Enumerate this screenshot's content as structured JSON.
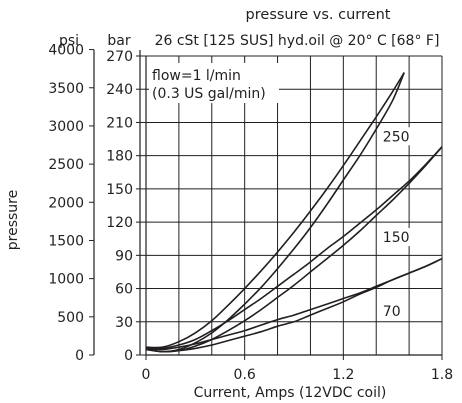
{
  "chart_data": {
    "type": "line",
    "title": "pressure vs. current",
    "subtitle": "26 cSt [125 SUS] hyd.oil @ 20° C [68° F]",
    "xlabel": "Current, Amps (12VDC coil)",
    "ylabel": "pressure",
    "unit_left": "psi",
    "unit_right": "bar",
    "annotation": "flow=1 l/min\n(0.3 US gal/min)",
    "x_ticks": [
      0,
      0.6,
      1.2,
      1.8
    ],
    "x_tick_labels": [
      "0",
      "0.6",
      "1.2",
      "1.8"
    ],
    "x_lim": [
      0,
      1.8
    ],
    "y_bar_ticks": [
      0,
      30,
      60,
      90,
      120,
      150,
      180,
      210,
      240,
      270
    ],
    "y_bar_tick_labels": [
      "0",
      "30",
      "60",
      "90",
      "120",
      "150",
      "180",
      "210",
      "240",
      "270"
    ],
    "y_psi_ticks": [
      0,
      500,
      1000,
      1500,
      2000,
      2500,
      3000,
      3500,
      4000
    ],
    "y_psi_tick_labels": [
      "0",
      "500",
      "1000",
      "1500",
      "2000",
      "2500",
      "3000",
      "3500",
      "4000"
    ],
    "y_lim_bar": [
      0,
      270
    ],
    "grid": true,
    "series": [
      {
        "name": "250",
        "upper": {
          "x": [
            0,
            0.1,
            0.2,
            0.3,
            0.4,
            0.5,
            0.6,
            0.7,
            0.8,
            0.9,
            1.0,
            1.1,
            1.2,
            1.3,
            1.4,
            1.5,
            1.57
          ],
          "y": [
            7,
            7,
            12,
            20,
            31,
            45,
            60,
            76,
            93,
            111,
            130,
            150,
            171,
            193,
            215,
            238,
            255
          ]
        },
        "lower": {
          "x": [
            0,
            0.1,
            0.2,
            0.3,
            0.4,
            0.5,
            0.6,
            0.7,
            0.8,
            0.9,
            1.0,
            1.1,
            1.2,
            1.3,
            1.4,
            1.5,
            1.57
          ],
          "y": [
            6,
            3,
            5,
            11,
            20,
            32,
            46,
            61,
            78,
            96,
            115,
            136,
            158,
            180,
            204,
            230,
            255
          ]
        }
      },
      {
        "name": "150",
        "upper": {
          "x": [
            0,
            0.1,
            0.2,
            0.3,
            0.4,
            0.5,
            0.6,
            0.7,
            0.8,
            0.9,
            1.0,
            1.1,
            1.2,
            1.3,
            1.4,
            1.5,
            1.6,
            1.7,
            1.8
          ],
          "y": [
            6,
            6,
            9,
            14,
            22,
            31,
            41,
            51,
            62,
            73,
            84,
            96,
            107,
            119,
            131,
            144,
            157,
            172,
            188
          ]
        },
        "lower": {
          "x": [
            0,
            0.1,
            0.2,
            0.3,
            0.4,
            0.5,
            0.6,
            0.7,
            0.8,
            0.9,
            1.0,
            1.1,
            1.2,
            1.3,
            1.4,
            1.5,
            1.6,
            1.7,
            1.8
          ],
          "y": [
            5,
            3,
            4,
            8,
            14,
            22,
            31,
            41,
            52,
            63,
            75,
            87,
            99,
            112,
            126,
            140,
            155,
            171,
            188
          ]
        }
      },
      {
        "name": "70",
        "upper": {
          "x": [
            0,
            0.1,
            0.2,
            0.3,
            0.4,
            0.5,
            0.6,
            0.7,
            0.8,
            0.9,
            1.0,
            1.1,
            1.2,
            1.3,
            1.4,
            1.5,
            1.6,
            1.7,
            1.8
          ],
          "y": [
            6,
            5,
            7,
            10,
            14,
            18,
            22,
            27,
            32,
            36,
            41,
            46,
            51,
            56,
            62,
            68,
            74,
            80,
            87
          ]
        },
        "lower": {
          "x": [
            0,
            0.1,
            0.2,
            0.3,
            0.4,
            0.5,
            0.6,
            0.7,
            0.8,
            0.9,
            1.0,
            1.1,
            1.2,
            1.3,
            1.4,
            1.5,
            1.6,
            1.7,
            1.8
          ],
          "y": [
            5,
            3,
            4,
            6,
            9,
            13,
            17,
            21,
            26,
            30,
            36,
            42,
            48,
            55,
            61,
            68,
            74,
            80,
            87
          ]
        }
      }
    ],
    "series_label_positions": [
      {
        "name": "250",
        "x": 1.44,
        "y": 193
      },
      {
        "name": "150",
        "x": 1.44,
        "y": 102
      },
      {
        "name": "70",
        "x": 1.44,
        "y": 35
      }
    ],
    "colors": {
      "line": "#231f20",
      "grid": "#231f20",
      "text": "#231f20"
    }
  }
}
